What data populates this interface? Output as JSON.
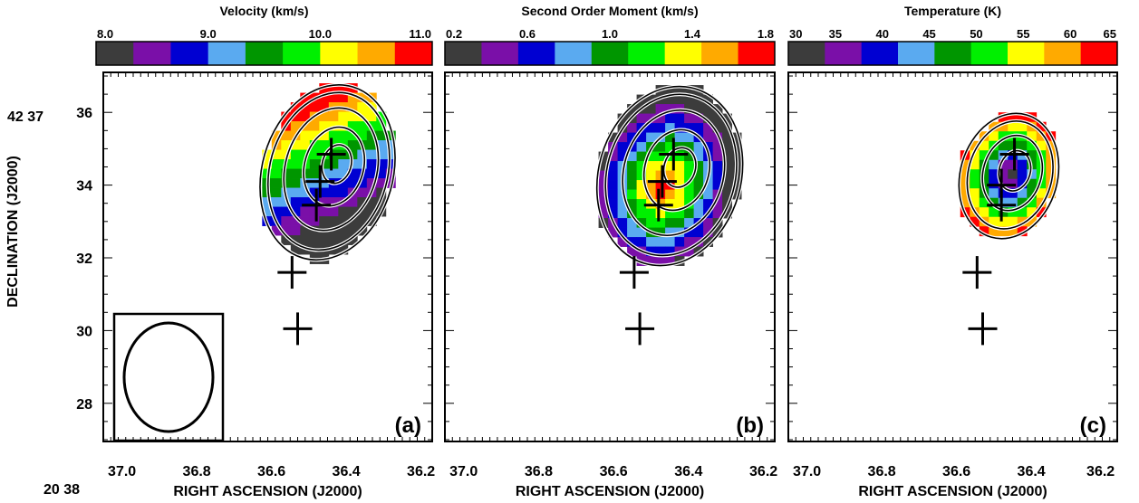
{
  "figure": {
    "ylabel": "DECLINATION (J2000)",
    "xlabel": "RIGHT ASCENSION (J2000)",
    "y_prefix": "42 37",
    "x_prefix": "20 38"
  },
  "axes": {
    "x_ticks": [
      "37.0",
      "36.8",
      "36.6",
      "36.4",
      "36.2"
    ],
    "x_tick_values": [
      37.0,
      36.8,
      36.6,
      36.4,
      36.2
    ],
    "y_ticks": [
      "36",
      "34",
      "32",
      "30",
      "28"
    ],
    "y_tick_values": [
      36,
      34,
      32,
      30,
      28
    ],
    "xlim": [
      37.05,
      36.17
    ],
    "ylim": [
      26.95,
      37.1
    ]
  },
  "colors": {
    "scale": [
      "#3c3c3c",
      "#7a0fa8",
      "#0000d2",
      "#5aaaf0",
      "#009600",
      "#00f000",
      "#ffff00",
      "#ffaa00",
      "#ff0000"
    ]
  },
  "chart_data": [
    {
      "type": "heatmap",
      "panel_label": "(a)",
      "colorbar": {
        "title": "Velocity (km/s)",
        "tick_labels": [
          "8.0",
          "9.0",
          "10.0",
          "11.0"
        ],
        "tick_values": [
          8.0,
          9.0,
          10.0,
          11.0
        ],
        "range": [
          8.0,
          11.0
        ]
      },
      "map": {
        "center": [
          36.45,
          34.35
        ],
        "rx": 0.175,
        "ry": 2.45,
        "gradient": "increasing outward from north-east core (~9.3) to south-west rim (~10.8)"
      },
      "markers": [
        {
          "ra": 36.44,
          "dec": 34.85
        },
        {
          "ra": 36.47,
          "dec": 34.1
        },
        {
          "ra": 36.48,
          "dec": 33.45
        },
        {
          "ra": 36.545,
          "dec": 31.6
        },
        {
          "ra": 36.53,
          "dec": 30.05
        }
      ],
      "beam": {
        "ra": 36.85,
        "dec": 28.85
      }
    },
    {
      "type": "heatmap",
      "panel_label": "(b)",
      "colorbar": {
        "title": "Second Order Moment (km/s)",
        "tick_labels": [
          "0.2",
          "0.6",
          "1.0",
          "1.4",
          "1.8"
        ],
        "tick_values": [
          0.2,
          0.6,
          1.0,
          1.4,
          1.8
        ],
        "range": [
          0.2,
          1.8
        ]
      },
      "map": {
        "center": [
          36.45,
          34.25
        ],
        "rx": 0.19,
        "ry": 2.5,
        "gradient": "peak ~1.8 at core near (36.45, 34.5), decreasing outward"
      },
      "markers": [
        {
          "ra": 36.44,
          "dec": 34.85
        },
        {
          "ra": 36.47,
          "dec": 34.1
        },
        {
          "ra": 36.48,
          "dec": 33.45
        },
        {
          "ra": 36.545,
          "dec": 31.6
        },
        {
          "ra": 36.53,
          "dec": 30.05
        }
      ]
    },
    {
      "type": "heatmap",
      "panel_label": "(c)",
      "colorbar": {
        "title": "Temperature (K)",
        "tick_labels": [
          "30",
          "35",
          "40",
          "45",
          "50",
          "55",
          "60",
          "65"
        ],
        "tick_values": [
          30,
          35,
          40,
          45,
          50,
          55,
          60,
          65
        ],
        "range": [
          30,
          65
        ]
      },
      "map": {
        "center": [
          36.46,
          34.25
        ],
        "rx": 0.13,
        "ry": 1.75,
        "gradient": "minimum ~30 K at core, rising to ~65 K at rim"
      },
      "markers": [
        {
          "ra": 36.445,
          "dec": 34.85
        },
        {
          "ra": 36.48,
          "dec": 34.0
        },
        {
          "ra": 36.48,
          "dec": 33.45
        },
        {
          "ra": 36.545,
          "dec": 31.6
        },
        {
          "ra": 36.53,
          "dec": 30.05
        }
      ]
    }
  ]
}
